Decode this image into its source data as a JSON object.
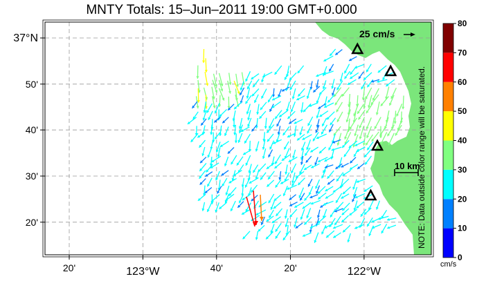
{
  "title": "MNTY Totals: 15–Jun–2011 19:00 GMT+0.000",
  "x_ticks": [
    {
      "label": "20'",
      "lon": -123.333
    },
    {
      "label": "123°W",
      "lon": -123.0,
      "major": true
    },
    {
      "label": "40'",
      "lon": -122.667
    },
    {
      "label": "20'",
      "lon": -122.333
    },
    {
      "label": "122°W",
      "lon": -122.0,
      "major": true
    }
  ],
  "y_ticks": [
    {
      "label": "37°N",
      "lat": 37.0,
      "major": true
    },
    {
      "label": "50'",
      "lat": 36.833
    },
    {
      "label": "40'",
      "lat": 36.667
    },
    {
      "label": "30'",
      "lat": 36.5
    },
    {
      "label": "20'",
      "lat": 36.333
    }
  ],
  "scale_arrow_label": "25 cm/s",
  "scale_bar_label": "10 km",
  "colorbar": {
    "ticks": [
      "0",
      "10",
      "20",
      "30",
      "40",
      "50",
      "60",
      "70",
      "80"
    ],
    "colors": [
      "#0000ff",
      "#0080ff",
      "#00ffff",
      "#80ff80",
      "#ffff00",
      "#ff8000",
      "#ff0000",
      "#800000"
    ],
    "unit": "cm/s",
    "note": "NOTE: Data outside color range will be saturated."
  },
  "sites": [
    {
      "name": "site-1",
      "lon": -122.03,
      "lat": 36.96
    },
    {
      "name": "site-2",
      "lon": -121.88,
      "lat": 36.88
    },
    {
      "name": "site-3",
      "lon": -121.94,
      "lat": 36.61
    },
    {
      "name": "site-4",
      "lon": -121.97,
      "lat": 36.43
    }
  ],
  "land_color": "#7be67b"
}
